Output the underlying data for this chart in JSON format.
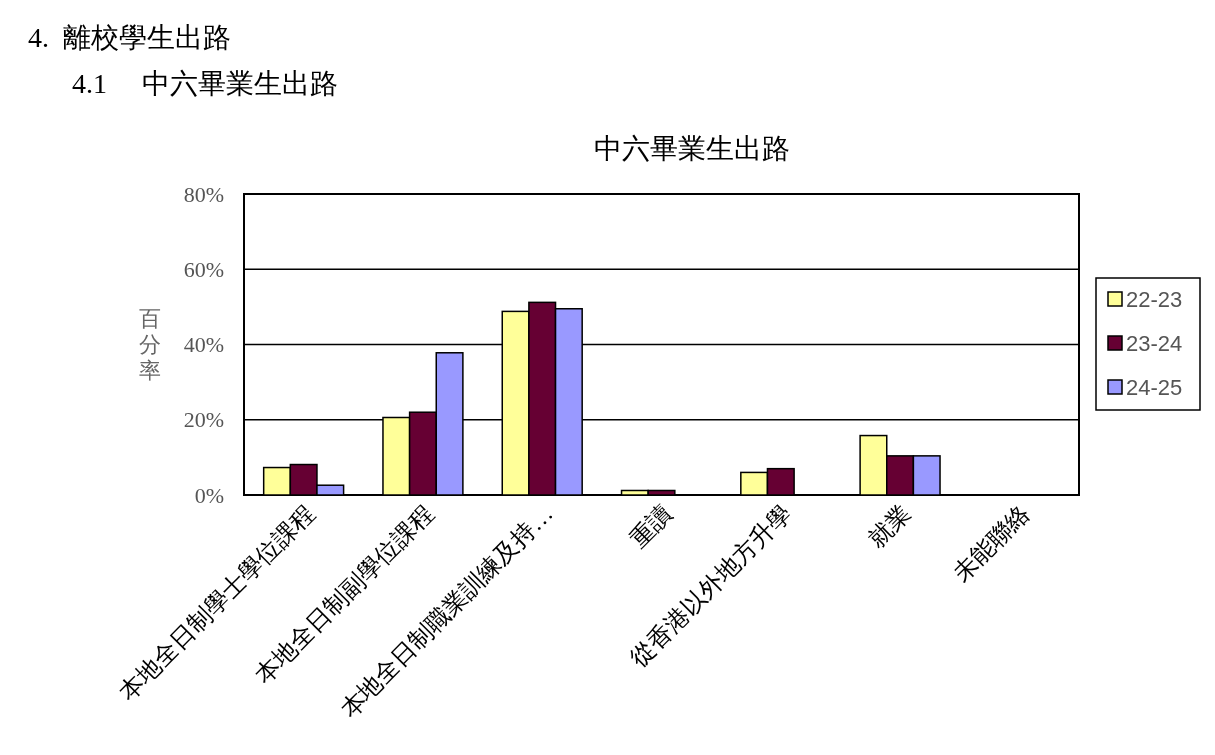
{
  "chart_data": {
    "type": "bar",
    "title": "中六畢業生出路",
    "ylabel": "百分率",
    "annotations": [
      "4.  離校學生出路",
      "4.1     中六畢業生出路"
    ],
    "categories": [
      "本地全日制學士學位課程",
      "本地全日制副學位課程",
      "本地全日制職業訓練及持…",
      "重讀",
      "從香港以外地方升學",
      "就業",
      "未能聯絡"
    ],
    "series": [
      {
        "name": "22-23",
        "color": "#ffff99",
        "values": [
          7.3,
          20.6,
          48.8,
          1.2,
          6.0,
          15.8,
          0
        ]
      },
      {
        "name": "23-24",
        "color": "#660033",
        "values": [
          8.1,
          22.0,
          51.2,
          1.2,
          7.0,
          10.4,
          0
        ]
      },
      {
        "name": "24-25",
        "color": "#9999ff",
        "values": [
          2.6,
          37.8,
          49.5,
          0,
          0,
          10.4,
          0
        ]
      }
    ],
    "ylim": [
      0,
      80
    ],
    "yticks": [
      {
        "value": 0,
        "label": "0%"
      },
      {
        "value": 20,
        "label": "20%"
      },
      {
        "value": 40,
        "label": "40%"
      },
      {
        "value": 60,
        "label": "60%"
      },
      {
        "value": 80,
        "label": "80%"
      }
    ],
    "grid": "y",
    "legend": "right"
  }
}
